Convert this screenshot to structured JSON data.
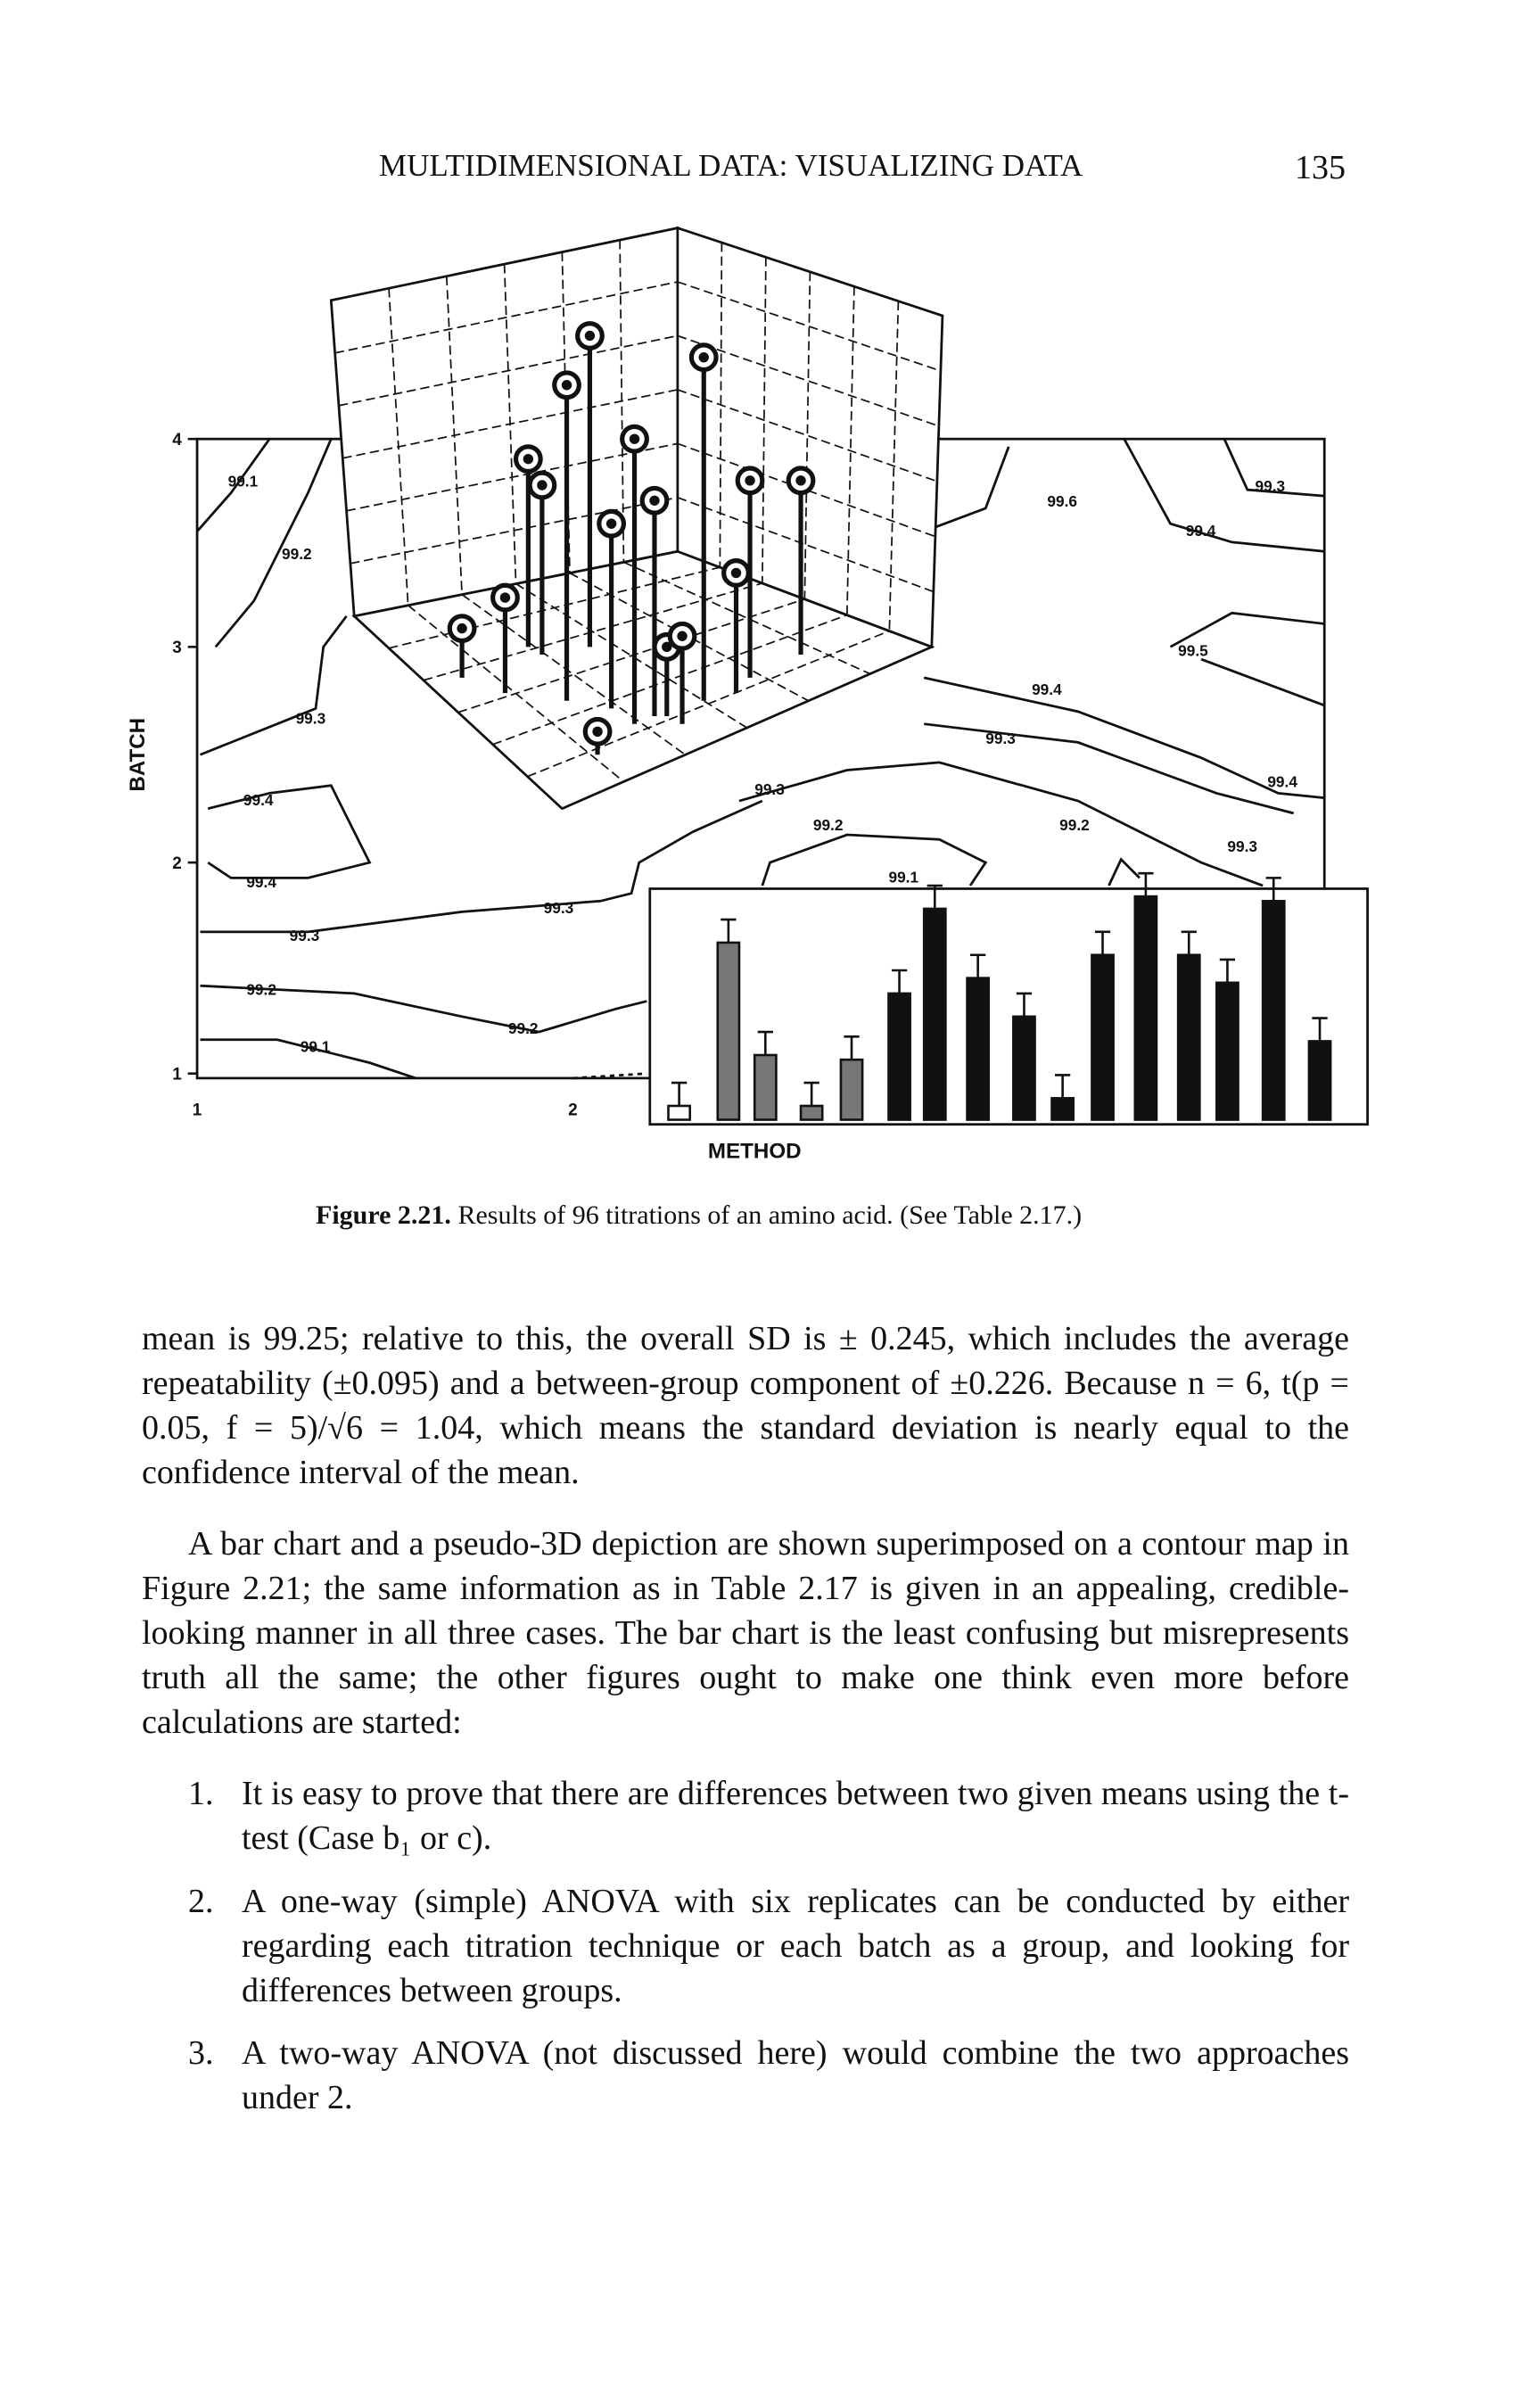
{
  "header": {
    "title": "MULTIDIMENSIONAL DATA: VISUALIZING DATA",
    "page_number": "135"
  },
  "figure": {
    "y_axis_label": "BATCH",
    "x_axis_label": "METHOD",
    "y_ticks": [
      "4",
      "3",
      "2",
      "1"
    ],
    "x_ticks": [
      "1",
      "2"
    ],
    "contour_labels": [
      "99.1",
      "99.2",
      "99.3",
      "99.4",
      "99.4",
      "99.3",
      "99.3",
      "99.2",
      "99.2",
      "99.1",
      "99.3",
      "99.2",
      "99.1",
      "99.2",
      "99.3",
      "99.4",
      "99.3",
      "99.4",
      "99.5",
      "99.6",
      "99.4",
      "99.3"
    ]
  },
  "caption": {
    "label": "Figure 2.21.",
    "text": "Results of 96 titrations of an amino acid. (See Table 2.17.)"
  },
  "paragraphs": [
    "mean is 99.25; relative to this, the overall SD is ± 0.245, which includes the average repeatability (±0.095) and a between-group component of ±0.226. Because n = 6, t(p = 0.05, f = 5)/√6 = 1.04, which means the standard deviation is nearly equal to the confidence interval of the mean.",
    "A bar chart and a pseudo-3D depiction are shown superimposed on a contour map in Figure 2.21; the same information as in Table 2.17 is given in an appealing, credible-looking manner in all three cases. The bar chart is the least confusing but misrepresents truth all the same; the other figures ought to make one think even more before calculations are started:"
  ],
  "list": [
    {
      "number": "1.",
      "text": "It is easy to prove that there are differences between two given means using the t-test (Case b₁ or c)."
    },
    {
      "number": "2.",
      "text": "A one-way (simple) ANOVA with six replicates can be conducted by either regarding each titration technique or each batch as a group, and looking for differences between groups."
    },
    {
      "number": "3.",
      "text": "A two-way ANOVA (not discussed here) would combine the two approaches under 2."
    }
  ]
}
